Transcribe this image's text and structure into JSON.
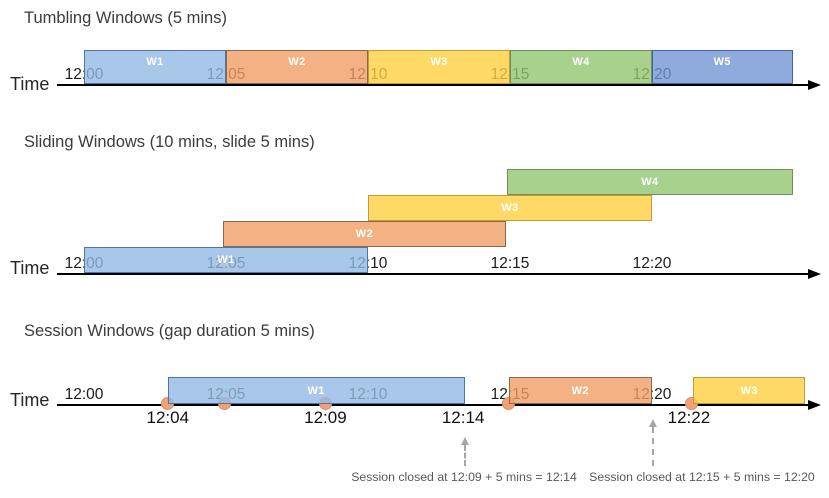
{
  "time_axis_label": "Time",
  "palette": {
    "blue": {
      "fill": "rgba(148,186,227,0.8)",
      "border": "#4A76A8"
    },
    "orange": {
      "fill": "rgba(241,158,100,0.8)",
      "border": "#87694E"
    },
    "yellow": {
      "fill": "rgba(255,208,64,0.8)",
      "border": "#C29A3C"
    },
    "green": {
      "fill": "rgba(148,198,114,0.8)",
      "border": "#70905B"
    },
    "periwinkle": {
      "fill": "rgba(115,149,212,0.8)",
      "border": "#44629E"
    }
  },
  "event_dot_colors": {
    "fill": "#F1A178",
    "border": "#E08E62"
  },
  "sections": {
    "tumbling": {
      "title": "Tumbling Windows (5 mins)",
      "ticks": [
        {
          "label": "12:00",
          "min": 0
        },
        {
          "label": "12:05",
          "min": 5
        },
        {
          "label": "12:10",
          "min": 10
        },
        {
          "label": "12:15",
          "min": 15
        },
        {
          "label": "12:20",
          "min": 20
        }
      ],
      "windows": [
        {
          "label": "W1",
          "start_min": 0,
          "end_min": 5,
          "color": "blue"
        },
        {
          "label": "W2",
          "start_min": 5,
          "end_min": 10,
          "color": "orange"
        },
        {
          "label": "W3",
          "start_min": 10,
          "end_min": 15,
          "color": "yellow"
        },
        {
          "label": "W4",
          "start_min": 15,
          "end_min": 20,
          "color": "green"
        },
        {
          "label": "W5",
          "start_min": 20,
          "end_min": 24.95,
          "color": "periwinkle"
        }
      ]
    },
    "sliding": {
      "title": "Sliding Windows (10 mins, slide 5 mins)",
      "ticks": [
        {
          "label": "12:00",
          "min": 0
        },
        {
          "label": "12:05",
          "min": 5
        },
        {
          "label": "12:10",
          "min": 10
        },
        {
          "label": "12:15",
          "min": 15
        },
        {
          "label": "12:20",
          "min": 20
        }
      ],
      "windows": [
        {
          "label": "W1",
          "start_min": 0,
          "end_min": 10,
          "color": "blue",
          "row": 0
        },
        {
          "label": "W2",
          "start_min": 4.9,
          "end_min": 14.85,
          "color": "orange",
          "row": 1
        },
        {
          "label": "W3",
          "start_min": 10,
          "end_min": 20,
          "color": "yellow",
          "row": 2
        },
        {
          "label": "W4",
          "start_min": 14.9,
          "end_min": 24.95,
          "color": "green",
          "row": 3
        }
      ]
    },
    "session": {
      "title": "Session Windows (gap duration 5 mins)",
      "ticks": [
        {
          "label": "12:00",
          "min": 0
        },
        {
          "label": "12:05",
          "min": 5
        },
        {
          "label": "12:10",
          "min": 10
        },
        {
          "label": "12:15",
          "min": 15
        },
        {
          "label": "12:20",
          "min": 20
        }
      ],
      "windows": [
        {
          "label": "W1",
          "start_min": 2.95,
          "end_min": 13.4,
          "color": "blue"
        },
        {
          "label": "W2",
          "start_min": 14.95,
          "end_min": 20.0,
          "color": "orange"
        },
        {
          "label": "W3",
          "start_min": 21.45,
          "end_min": 25.4,
          "color": "yellow"
        }
      ],
      "events": [
        {
          "min": 2.95
        },
        {
          "min": 4.95
        },
        {
          "min": 8.5
        },
        {
          "min": 14.95
        },
        {
          "min": 21.4
        }
      ],
      "event_labels": [
        {
          "text": "12:04",
          "min": 2.95
        },
        {
          "text": "12:09",
          "min": 8.5
        },
        {
          "text": "12:14",
          "min": 13.35
        },
        {
          "text": "12:22",
          "min": 21.3
        }
      ],
      "annotations": [
        {
          "text": "Session closed at 12:09 + 5 mins = 12:14",
          "arrow_min": 13.4,
          "text_center_min": 13.38
        },
        {
          "text": "Session closed at 12:15 + 5 mins = 12:20",
          "arrow_min": 20.05,
          "text_center_min": 21.76
        }
      ]
    }
  }
}
